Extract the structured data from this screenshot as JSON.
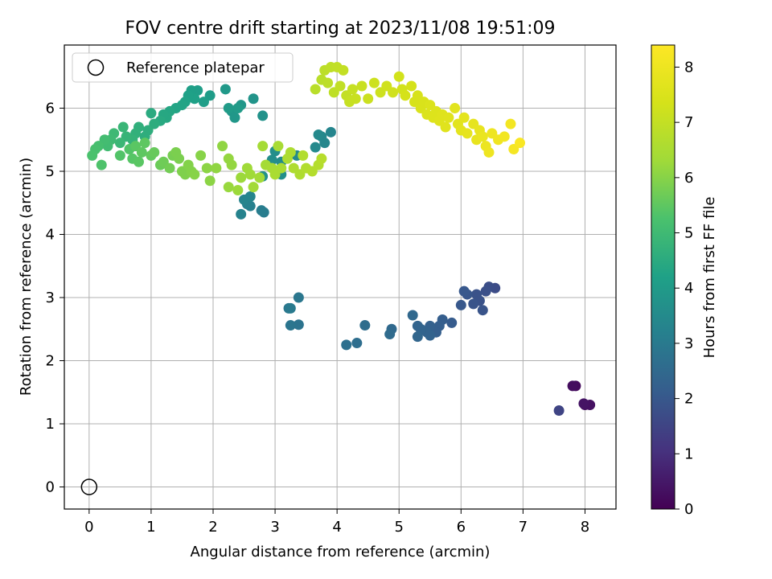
{
  "chart_data": {
    "type": "scatter",
    "title": "FOV centre drift starting at 2023/11/08 19:51:09",
    "xlabel": "Angular distance from reference (arcmin)",
    "ylabel": "Rotation from reference (arcmin)",
    "xlim": [
      -0.4,
      8.5
    ],
    "ylim": [
      -0.35,
      7.0
    ],
    "xticks": [
      0,
      1,
      2,
      3,
      4,
      5,
      6,
      7,
      8
    ],
    "yticks": [
      0,
      1,
      2,
      3,
      4,
      5,
      6
    ],
    "grid": true,
    "legend": {
      "position": "top-left",
      "entries": [
        "Reference platepar"
      ]
    },
    "reference_point": {
      "x": 0,
      "y": 0,
      "marker": "open-circle"
    },
    "colorbar": {
      "label": "Hours from first FF file",
      "range": [
        0,
        8.4
      ],
      "ticks": [
        0,
        1,
        2,
        3,
        4,
        5,
        6,
        7,
        8
      ],
      "colormap": "viridis"
    },
    "points": [
      [
        7.85,
        1.6,
        0.2
      ],
      [
        7.8,
        1.6,
        0.25
      ],
      [
        8.0,
        1.3,
        0.3
      ],
      [
        8.08,
        1.3,
        0.35
      ],
      [
        7.98,
        1.32,
        0.4
      ],
      [
        7.58,
        1.21,
        1.5
      ],
      [
        6.55,
        3.15,
        1.7
      ],
      [
        6.45,
        3.17,
        1.75
      ],
      [
        6.4,
        3.1,
        1.8
      ],
      [
        6.25,
        3.05,
        1.85
      ],
      [
        6.3,
        2.95,
        1.85
      ],
      [
        6.2,
        2.9,
        1.9
      ],
      [
        6.35,
        2.8,
        1.9
      ],
      [
        6.1,
        3.05,
        1.95
      ],
      [
        6.05,
        3.1,
        2.0
      ],
      [
        6.0,
        2.88,
        2.0
      ],
      [
        5.85,
        2.6,
        2.1
      ],
      [
        5.7,
        2.65,
        2.15
      ],
      [
        5.65,
        2.55,
        2.2
      ],
      [
        5.6,
        2.45,
        2.2
      ],
      [
        5.5,
        2.55,
        2.25
      ],
      [
        5.45,
        2.45,
        2.3
      ],
      [
        5.5,
        2.4,
        2.3
      ],
      [
        5.35,
        2.5,
        2.35
      ],
      [
        5.3,
        2.55,
        2.35
      ],
      [
        5.3,
        2.38,
        2.4
      ],
      [
        5.22,
        2.72,
        2.45
      ],
      [
        4.88,
        2.5,
        2.5
      ],
      [
        4.85,
        2.42,
        2.55
      ],
      [
        4.45,
        2.56,
        2.6
      ],
      [
        4.32,
        2.28,
        2.65
      ],
      [
        4.15,
        2.25,
        2.7
      ],
      [
        3.38,
        2.57,
        2.8
      ],
      [
        3.25,
        2.56,
        2.85
      ],
      [
        3.38,
        3.0,
        2.9
      ],
      [
        3.22,
        2.83,
        2.95
      ],
      [
        3.25,
        2.83,
        3.0
      ],
      [
        2.82,
        4.35,
        3.05
      ],
      [
        2.78,
        4.38,
        3.1
      ],
      [
        2.6,
        4.45,
        3.15
      ],
      [
        2.55,
        4.48,
        3.2
      ],
      [
        2.45,
        4.32,
        3.25
      ],
      [
        2.5,
        4.55,
        3.3
      ],
      [
        2.6,
        4.6,
        3.3
      ],
      [
        3.9,
        5.62,
        3.35
      ],
      [
        3.8,
        5.45,
        3.4
      ],
      [
        3.75,
        5.55,
        3.4
      ],
      [
        3.7,
        5.58,
        3.45
      ],
      [
        3.65,
        5.38,
        3.45
      ],
      [
        3.35,
        5.25,
        3.5
      ],
      [
        3.1,
        5.15,
        3.55
      ],
      [
        3.0,
        5.32,
        3.6
      ],
      [
        2.95,
        5.18,
        3.6
      ],
      [
        3.1,
        4.95,
        3.65
      ],
      [
        2.8,
        4.92,
        3.7
      ],
      [
        2.8,
        5.88,
        3.75
      ],
      [
        2.65,
        6.15,
        3.8
      ],
      [
        2.45,
        6.05,
        3.85
      ],
      [
        2.3,
        5.95,
        3.9
      ],
      [
        2.35,
        5.85,
        3.9
      ],
      [
        2.2,
        6.3,
        3.95
      ],
      [
        2.4,
        6.0,
        4.0
      ],
      [
        2.25,
        6.0,
        4.0
      ],
      [
        1.95,
        6.2,
        4.05
      ],
      [
        1.85,
        6.1,
        4.1
      ],
      [
        1.75,
        6.28,
        4.1
      ],
      [
        1.65,
        6.28,
        4.15
      ],
      [
        1.7,
        6.15,
        4.2
      ],
      [
        1.6,
        6.2,
        4.2
      ],
      [
        1.55,
        6.1,
        4.25
      ],
      [
        1.5,
        6.05,
        4.3
      ],
      [
        1.4,
        6.0,
        4.3
      ],
      [
        1.3,
        5.95,
        4.35
      ],
      [
        1.25,
        5.85,
        4.4
      ],
      [
        1.2,
        5.9,
        4.4
      ],
      [
        1.15,
        5.8,
        4.45
      ],
      [
        1.0,
        5.92,
        4.5
      ],
      [
        1.05,
        5.75,
        4.55
      ],
      [
        0.95,
        5.65,
        4.6
      ],
      [
        0.9,
        5.55,
        4.6
      ],
      [
        0.8,
        5.7,
        4.65
      ],
      [
        0.75,
        5.6,
        4.7
      ],
      [
        0.7,
        5.5,
        4.75
      ],
      [
        0.6,
        5.55,
        4.8
      ],
      [
        0.55,
        5.7,
        4.85
      ],
      [
        0.5,
        5.45,
        4.9
      ],
      [
        0.4,
        5.6,
        4.95
      ],
      [
        0.35,
        5.5,
        5.0
      ],
      [
        0.3,
        5.4,
        5.05
      ],
      [
        0.25,
        5.5,
        5.1
      ],
      [
        0.15,
        5.4,
        5.15
      ],
      [
        0.1,
        5.35,
        5.2
      ],
      [
        0.05,
        5.25,
        5.25
      ],
      [
        0.2,
        5.1,
        5.3
      ],
      [
        0.5,
        5.25,
        5.35
      ],
      [
        0.65,
        5.35,
        5.35
      ],
      [
        0.7,
        5.2,
        5.4
      ],
      [
        0.8,
        5.15,
        5.45
      ],
      [
        0.75,
        5.4,
        5.45
      ],
      [
        0.85,
        5.3,
        5.5
      ],
      [
        0.9,
        5.45,
        5.5
      ],
      [
        1.0,
        5.25,
        5.55
      ],
      [
        1.05,
        5.3,
        5.6
      ],
      [
        1.15,
        5.1,
        5.65
      ],
      [
        1.2,
        5.15,
        5.7
      ],
      [
        1.3,
        5.05,
        5.75
      ],
      [
        1.35,
        5.25,
        5.8
      ],
      [
        1.4,
        5.3,
        5.85
      ],
      [
        1.45,
        5.2,
        5.85
      ],
      [
        1.5,
        5.0,
        5.9
      ],
      [
        1.55,
        4.95,
        5.9
      ],
      [
        1.6,
        5.1,
        5.95
      ],
      [
        1.65,
        5.0,
        5.95
      ],
      [
        1.7,
        4.95,
        6.0
      ],
      [
        1.8,
        5.25,
        6.0
      ],
      [
        1.9,
        5.05,
        6.05
      ],
      [
        1.95,
        4.85,
        6.05
      ],
      [
        2.05,
        5.05,
        6.1
      ],
      [
        2.15,
        5.4,
        6.1
      ],
      [
        2.25,
        5.2,
        6.15
      ],
      [
        2.3,
        5.1,
        6.15
      ],
      [
        2.25,
        4.75,
        6.2
      ],
      [
        2.4,
        4.7,
        6.25
      ],
      [
        2.45,
        4.9,
        6.25
      ],
      [
        2.55,
        5.05,
        6.3
      ],
      [
        2.6,
        4.95,
        6.3
      ],
      [
        2.65,
        4.75,
        6.35
      ],
      [
        2.75,
        4.9,
        6.35
      ],
      [
        2.85,
        5.1,
        6.4
      ],
      [
        2.8,
        5.4,
        6.4
      ],
      [
        2.95,
        5.05,
        6.45
      ],
      [
        3.05,
        5.4,
        6.45
      ],
      [
        3.0,
        4.95,
        6.5
      ],
      [
        3.1,
        5.05,
        6.5
      ],
      [
        3.2,
        5.2,
        6.55
      ],
      [
        3.25,
        5.3,
        6.55
      ],
      [
        3.3,
        5.05,
        6.6
      ],
      [
        3.4,
        4.95,
        6.6
      ],
      [
        3.45,
        5.25,
        6.65
      ],
      [
        3.5,
        5.05,
        6.65
      ],
      [
        3.6,
        5.0,
        6.7
      ],
      [
        3.7,
        5.1,
        6.7
      ],
      [
        3.75,
        5.2,
        6.75
      ],
      [
        3.65,
        6.3,
        6.8
      ],
      [
        3.75,
        6.45,
        6.8
      ],
      [
        3.8,
        6.6,
        6.85
      ],
      [
        3.85,
        6.4,
        6.85
      ],
      [
        3.9,
        6.65,
        6.9
      ],
      [
        3.95,
        6.25,
        6.9
      ],
      [
        4.0,
        6.65,
        6.95
      ],
      [
        4.05,
        6.35,
        6.95
      ],
      [
        4.1,
        6.6,
        7.0
      ],
      [
        4.15,
        6.2,
        7.0
      ],
      [
        4.2,
        6.1,
        7.05
      ],
      [
        4.25,
        6.3,
        7.05
      ],
      [
        4.3,
        6.15,
        7.1
      ],
      [
        4.4,
        6.35,
        7.1
      ],
      [
        4.5,
        6.15,
        7.15
      ],
      [
        4.6,
        6.4,
        7.2
      ],
      [
        4.7,
        6.25,
        7.2
      ],
      [
        4.8,
        6.35,
        7.25
      ],
      [
        4.9,
        6.25,
        7.25
      ],
      [
        5.0,
        6.5,
        7.3
      ],
      [
        5.05,
        6.3,
        7.3
      ],
      [
        5.1,
        6.2,
        7.35
      ],
      [
        5.2,
        6.35,
        7.35
      ],
      [
        5.25,
        6.1,
        7.4
      ],
      [
        5.3,
        6.2,
        7.4
      ],
      [
        5.35,
        6.0,
        7.45
      ],
      [
        5.4,
        6.1,
        7.45
      ],
      [
        5.45,
        5.9,
        7.5
      ],
      [
        5.5,
        6.05,
        7.5
      ],
      [
        5.55,
        5.85,
        7.55
      ],
      [
        5.6,
        5.95,
        7.55
      ],
      [
        5.65,
        5.8,
        7.6
      ],
      [
        5.7,
        5.9,
        7.6
      ],
      [
        5.75,
        5.7,
        7.65
      ],
      [
        5.8,
        5.85,
        7.65
      ],
      [
        5.9,
        6.0,
        7.7
      ],
      [
        5.95,
        5.75,
        7.7
      ],
      [
        6.0,
        5.65,
        7.75
      ],
      [
        6.05,
        5.85,
        7.75
      ],
      [
        6.1,
        5.6,
        7.8
      ],
      [
        6.2,
        5.75,
        7.8
      ],
      [
        6.25,
        5.5,
        7.85
      ],
      [
        6.3,
        5.65,
        7.85
      ],
      [
        6.35,
        5.55,
        7.9
      ],
      [
        6.4,
        5.4,
        7.95
      ],
      [
        6.45,
        5.3,
        8.0
      ],
      [
        6.5,
        5.6,
        8.0
      ],
      [
        6.6,
        5.5,
        8.05
      ],
      [
        6.7,
        5.55,
        8.1
      ],
      [
        6.8,
        5.75,
        8.15
      ],
      [
        6.85,
        5.35,
        8.2
      ],
      [
        6.95,
        5.45,
        8.3
      ]
    ]
  }
}
